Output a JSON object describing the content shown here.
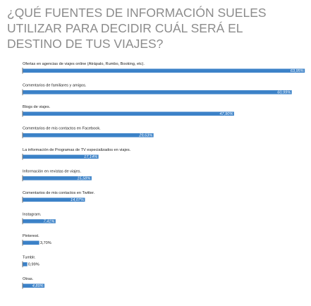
{
  "colors": {
    "bar": "#3c82c8",
    "axis": "#555555",
    "title": "#8c8c8c",
    "label": "#222222",
    "inner_value": "#ffffff"
  },
  "chart_data": {
    "type": "bar",
    "orientation": "horizontal",
    "title_lines": [
      "¿QUÉ FUENTES DE INFORMACIÓN SUELES",
      "UTILIZAR PARA DECIDIR CUÁL SERÁ EL",
      "DESTINO DE TUS VIAJES?"
    ],
    "categories": [
      "Ofertas en agencias de viajes online (Atrápalo, Rumbo, Booking, etc).",
      "Comentarios de familiares y amigos.",
      "Blogs de viajes.",
      "Comentarios de mis contactos en Facebook.",
      "La información de Programas de TV especializados en viajes.",
      "Información en revistas de viajes.",
      "Comentarios de mis contactos en Twitter.",
      "Instagram.",
      "Pinterest.",
      "Tumblr.",
      "Otras."
    ],
    "values": [
      63.95,
      60.99,
      47.9,
      29.63,
      17.14,
      15.58,
      14.07,
      7.41,
      3.7,
      0.99,
      4.89
    ],
    "value_labels": [
      "63,95%",
      "60,99%",
      "47,90%",
      "29,63%",
      "17,14%",
      "15,58%",
      "14,07%",
      "7,41%",
      "3,70%",
      "0,99%",
      "4,89%"
    ],
    "xlim": [
      0,
      64
    ],
    "grid": false,
    "legend": "none"
  }
}
